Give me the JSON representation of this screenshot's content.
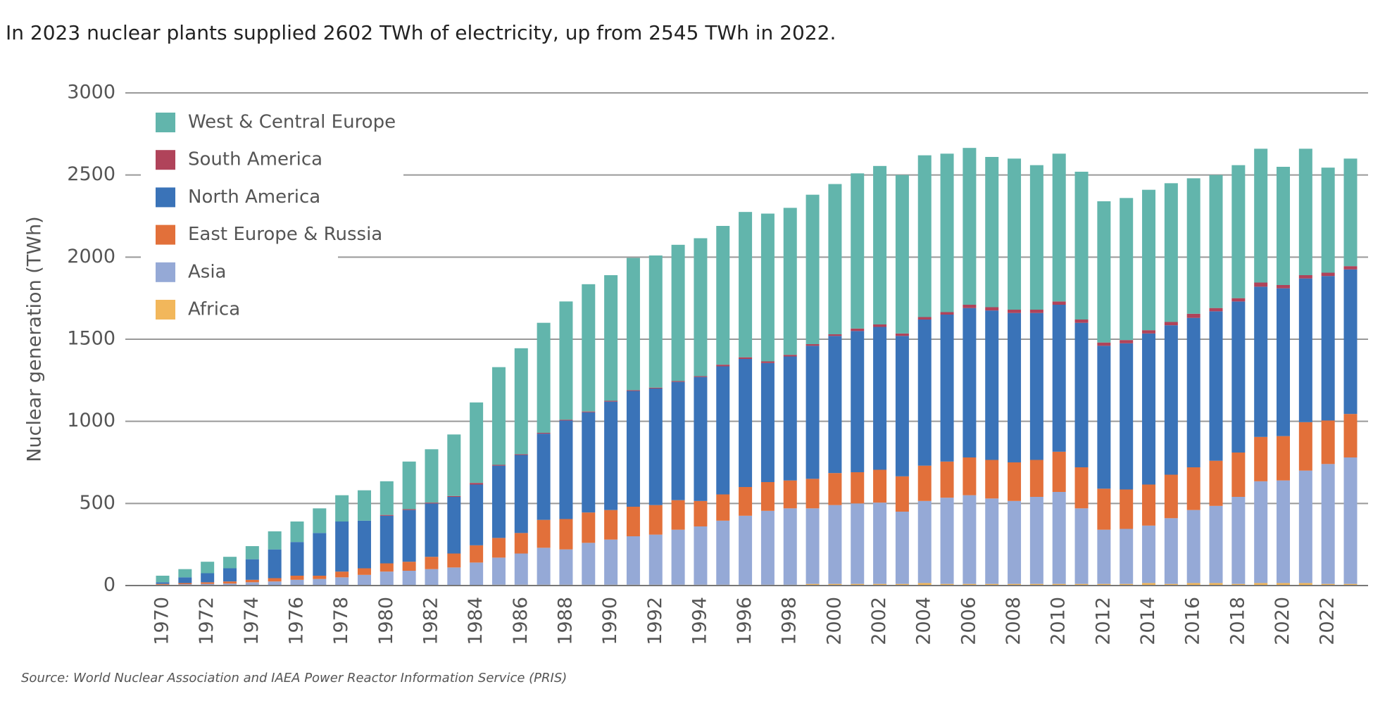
{
  "chart_data": {
    "type": "stacked-bar",
    "title": "In 2023 nuclear plants supplied 2602 TWh of electricity, up from 2545 TWh in 2022.",
    "y_label": "Nuclear generation (TWh)",
    "source": "Source: World Nuclear Association and IAEA Power Reactor Information Service (PRIS)",
    "categories": [
      "1970",
      null,
      "1972",
      null,
      "1974",
      null,
      "1976",
      null,
      "1978",
      null,
      "1980",
      null,
      "1982",
      null,
      "1984",
      null,
      "1986",
      null,
      "1988",
      null,
      "1990",
      null,
      "1992",
      null,
      "1994",
      null,
      "1996",
      null,
      "1998",
      null,
      "2000",
      null,
      "2002",
      null,
      "2004",
      null,
      "2006",
      null,
      "2008",
      null,
      "2010",
      null,
      "2012",
      null,
      "2014",
      null,
      "2016",
      null,
      "2018",
      null,
      "2020",
      null,
      "2022",
      null
    ],
    "series": [
      {
        "name": "West & Central Europe",
        "color": "#62b5ac",
        "values": [
          40,
          50,
          70,
          70,
          80,
          110,
          125,
          150,
          160,
          185,
          205,
          290,
          325,
          375,
          490,
          595,
          645,
          670,
          720,
          775,
          765,
          805,
          805,
          830,
          840,
          845,
          885,
          900,
          895,
          910,
          915,
          945,
          965,
          965,
          985,
          965,
          955,
          915,
          920,
          880,
          900,
          900,
          860,
          865,
          855,
          845,
          825,
          810,
          810,
          815,
          720,
          770,
          640,
          655
        ]
      },
      {
        "name": "South America",
        "color": "#b0435a",
        "values": [
          0,
          0,
          0,
          0,
          0,
          0,
          0,
          0,
          0,
          0,
          5,
          5,
          5,
          5,
          10,
          5,
          5,
          5,
          5,
          5,
          5,
          5,
          5,
          5,
          5,
          10,
          10,
          10,
          10,
          10,
          10,
          15,
          15,
          15,
          15,
          15,
          20,
          20,
          20,
          20,
          20,
          20,
          20,
          20,
          20,
          20,
          25,
          20,
          20,
          25,
          20,
          20,
          20,
          20
        ]
      },
      {
        "name": "North America",
        "color": "#3a73b8",
        "values": [
          10,
          35,
          55,
          80,
          125,
          175,
          205,
          260,
          305,
          290,
          290,
          315,
          325,
          345,
          370,
          440,
          475,
          525,
          600,
          610,
          660,
          705,
          710,
          720,
          755,
          780,
          780,
          725,
          755,
          810,
          835,
          860,
          870,
          855,
          890,
          895,
          910,
          910,
          910,
          895,
          895,
          880,
          870,
          890,
          920,
          910,
          910,
          910,
          920,
          915,
          900,
          875,
          880,
          880
        ]
      },
      {
        "name": "East Europe & Russia",
        "color": "#e2703a",
        "values": [
          5,
          7,
          10,
          13,
          15,
          20,
          25,
          20,
          35,
          40,
          50,
          55,
          75,
          85,
          105,
          120,
          125,
          170,
          185,
          185,
          180,
          180,
          180,
          180,
          155,
          160,
          175,
          175,
          170,
          180,
          195,
          190,
          200,
          215,
          215,
          220,
          230,
          235,
          235,
          225,
          245,
          250,
          250,
          240,
          250,
          265,
          260,
          275,
          270,
          270,
          270,
          295,
          265,
          265
        ]
      },
      {
        "name": "Asia",
        "color": "#95a9d6",
        "values": [
          5,
          8,
          10,
          12,
          20,
          25,
          35,
          40,
          50,
          65,
          85,
          90,
          100,
          110,
          140,
          165,
          190,
          225,
          215,
          255,
          275,
          295,
          305,
          335,
          355,
          390,
          420,
          450,
          465,
          460,
          480,
          490,
          495,
          440,
          500,
          525,
          540,
          520,
          505,
          530,
          560,
          460,
          330,
          335,
          350,
          400,
          445,
          470,
          530,
          620,
          625,
          685,
          730,
          770
        ]
      },
      {
        "name": "Africa",
        "color": "#f2b75b",
        "values": [
          0,
          0,
          0,
          0,
          0,
          0,
          0,
          0,
          0,
          0,
          0,
          0,
          0,
          0,
          0,
          5,
          5,
          5,
          5,
          5,
          5,
          5,
          5,
          5,
          5,
          5,
          5,
          5,
          5,
          10,
          10,
          10,
          10,
          10,
          15,
          10,
          10,
          10,
          10,
          10,
          10,
          10,
          10,
          10,
          15,
          10,
          15,
          15,
          10,
          15,
          15,
          15,
          10,
          10
        ]
      }
    ],
    "ylim": [
      0,
      3000
    ],
    "yticks": [
      0,
      500,
      1000,
      1500,
      2000,
      2500,
      3000
    ],
    "grid": true
  }
}
